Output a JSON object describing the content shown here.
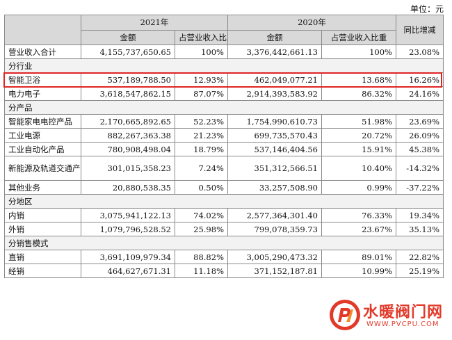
{
  "unit_label": "单位：元",
  "header": {
    "year_2021": "2021年",
    "year_2020": "2020年",
    "yoy": "同比增减",
    "amount": "金额",
    "ratio": "占营业收入比重"
  },
  "rows": [
    {
      "label": "营业收入合计",
      "a21": "4,155,737,650.65",
      "r21": "100%",
      "a20": "3,376,442,661.13",
      "r20": "100%",
      "yoy": "23.08%"
    },
    {
      "section": "分行业"
    },
    {
      "label": "智能卫浴",
      "a21": "537,189,788.50",
      "r21": "12.93%",
      "a20": "462,049,077.21",
      "r20": "13.68%",
      "yoy": "16.26%"
    },
    {
      "label": "电力电子",
      "a21": "3,618,547,862.15",
      "r21": "87.07%",
      "a20": "2,914,393,583.92",
      "r20": "86.32%",
      "yoy": "24.16%"
    },
    {
      "section": "分产品"
    },
    {
      "label": "智能家电电控产品",
      "a21": "2,170,665,892.65",
      "r21": "52.23%",
      "a20": "1,754,990,610.73",
      "r20": "51.98%",
      "yoy": "23.69%"
    },
    {
      "label": "工业电源",
      "a21": "882,267,363.38",
      "r21": "21.23%",
      "a20": "699,735,570.43",
      "r20": "20.72%",
      "yoy": "26.09%"
    },
    {
      "label": "工业自动化产品",
      "a21": "780,908,498.04",
      "r21": "18.79%",
      "a20": "537,146,404.56",
      "r20": "15.91%",
      "yoy": "45.38%"
    },
    {
      "label": "新能源及轨道交通产品",
      "a21": "301,015,358.23",
      "r21": "7.24%",
      "a20": "351,312,566.51",
      "r20": "10.40%",
      "yoy": "-14.32%"
    },
    {
      "label": "其他业务",
      "a21": "20,880,538.35",
      "r21": "0.50%",
      "a20": "33,257,508.90",
      "r20": "0.99%",
      "yoy": "-37.22%"
    },
    {
      "section": "分地区"
    },
    {
      "label": "内销",
      "a21": "3,075,941,122.13",
      "r21": "74.02%",
      "a20": "2,577,364,301.40",
      "r20": "76.33%",
      "yoy": "19.34%"
    },
    {
      "label": "外销",
      "a21": "1,079,796,528.52",
      "r21": "25.98%",
      "a20": "799,078,359.73",
      "r20": "23.67%",
      "yoy": "35.13%"
    },
    {
      "section": "分销售模式"
    },
    {
      "label": "直销",
      "a21": "3,691,109,979.34",
      "r21": "88.82%",
      "a20": "3,005,290,473.32",
      "r20": "89.01%",
      "yoy": "22.82%"
    },
    {
      "label": "经销",
      "a21": "464,627,671.31",
      "r21": "11.18%",
      "a20": "371,152,187.81",
      "r20": "10.99%",
      "yoy": "25.19%"
    }
  ],
  "watermark": {
    "title": "水暖阀门网",
    "url": "WWW.PVCPU.COM",
    "brand_color": "#e23a2a"
  },
  "highlight_color": "#e02424"
}
